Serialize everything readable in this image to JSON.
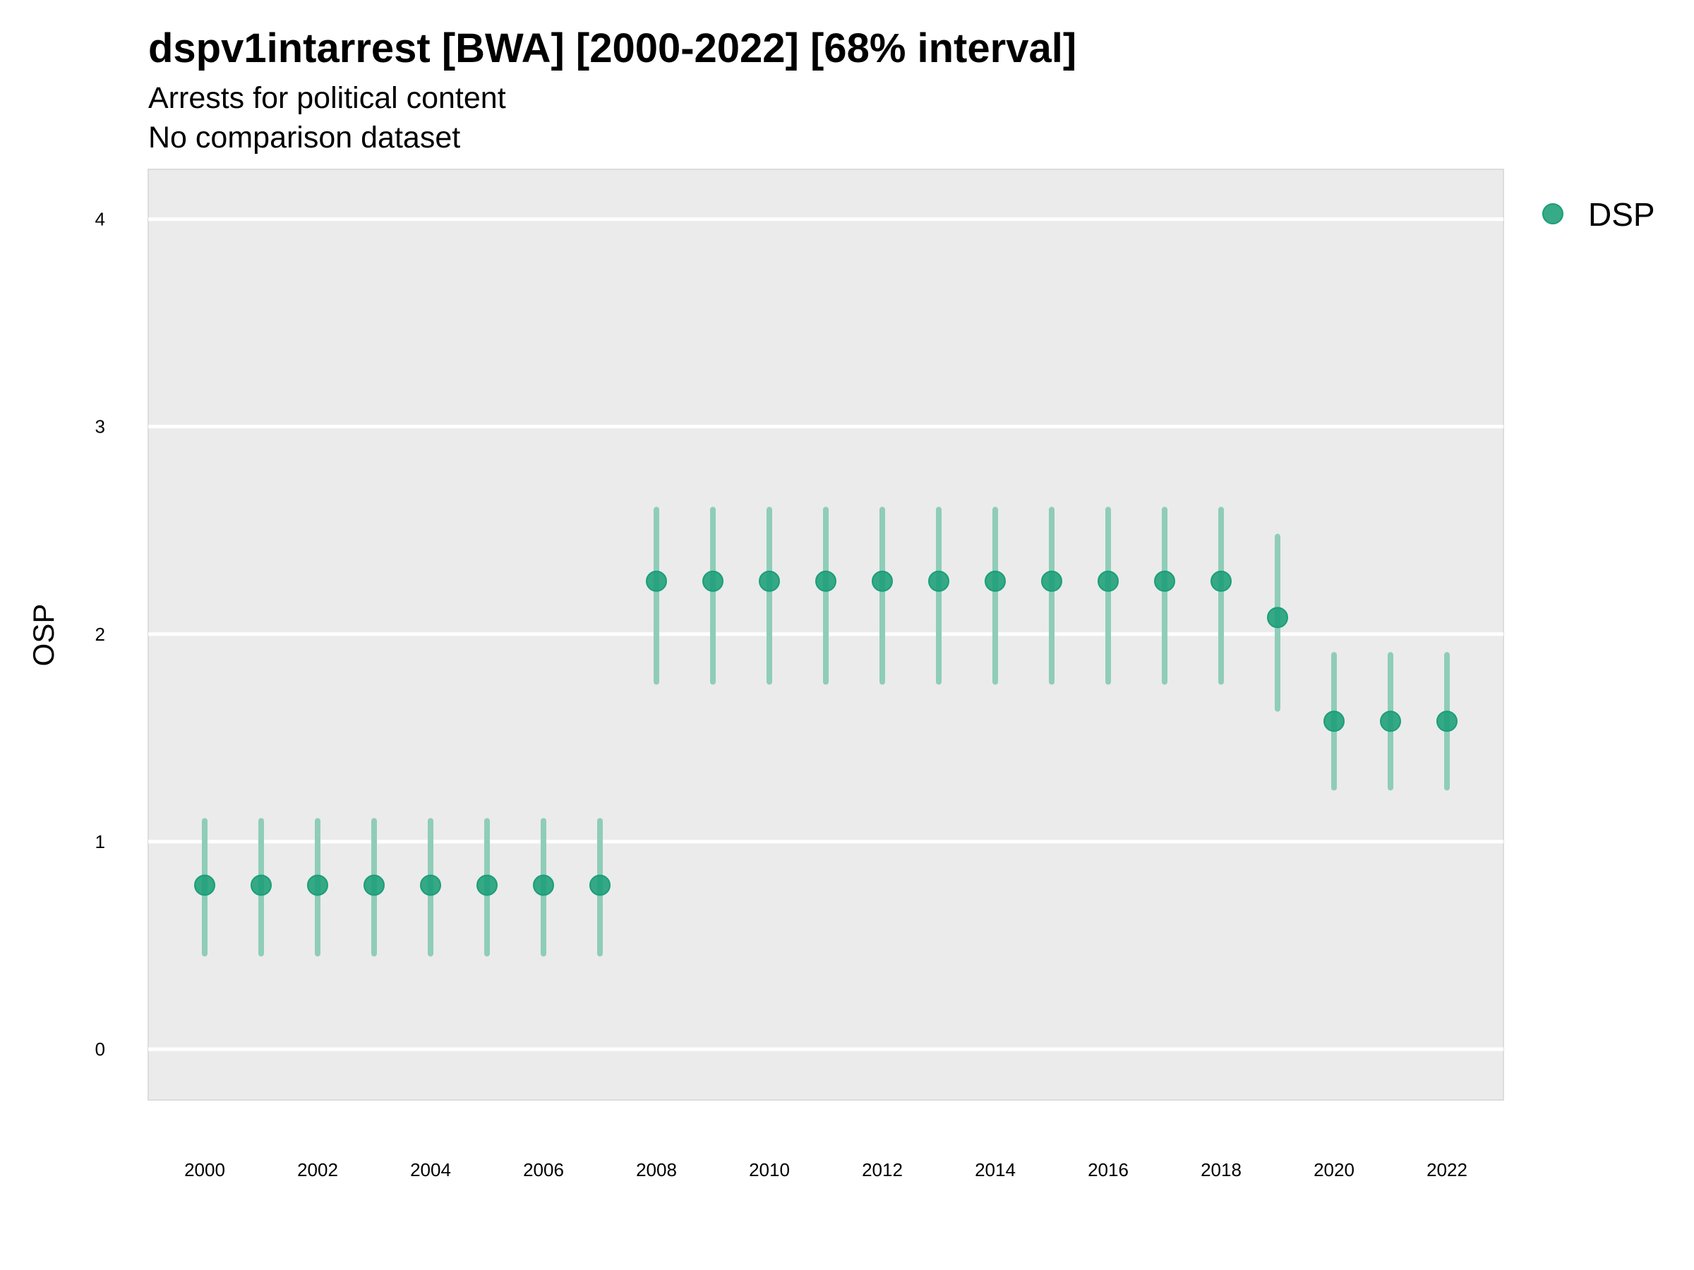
{
  "chart_data": {
    "type": "scatter",
    "title": "dspv1intarrest [BWA] [2000-2022] [68% interval]",
    "subtitle": "Arrests for political content",
    "caption": "No comparison dataset",
    "xlabel": "",
    "ylabel": "OSP",
    "xlim": [
      1999.0,
      2023.0
    ],
    "ylim": [
      -0.245,
      4.24
    ],
    "grid": true,
    "legend_position": "right",
    "x_ticks": [
      2000,
      2002,
      2004,
      2006,
      2008,
      2010,
      2012,
      2014,
      2016,
      2018,
      2020,
      2022
    ],
    "x_tick_labels": [
      "2000",
      "2002",
      "2004",
      "2006",
      "2008",
      "2010",
      "2012",
      "2014",
      "2016",
      "2018",
      "2020",
      "2022"
    ],
    "y_ticks": [
      0,
      1,
      2,
      3,
      4
    ],
    "y_tick_labels": [
      "0",
      "1",
      "2",
      "3",
      "4"
    ],
    "series": [
      {
        "name": "DSP",
        "color": "#1b9e77",
        "x": [
          2000,
          2001,
          2002,
          2003,
          2004,
          2005,
          2006,
          2007,
          2008,
          2009,
          2010,
          2011,
          2012,
          2013,
          2014,
          2015,
          2016,
          2017,
          2018,
          2019,
          2020,
          2021,
          2022
        ],
        "values": [
          0.79,
          0.79,
          0.79,
          0.79,
          0.79,
          0.79,
          0.79,
          0.79,
          2.255,
          2.255,
          2.255,
          2.255,
          2.255,
          2.255,
          2.255,
          2.255,
          2.255,
          2.255,
          2.255,
          2.08,
          1.58,
          1.58,
          1.58
        ],
        "lower": [
          0.46,
          0.46,
          0.46,
          0.46,
          0.46,
          0.46,
          0.46,
          0.46,
          1.77,
          1.77,
          1.77,
          1.77,
          1.77,
          1.77,
          1.77,
          1.77,
          1.77,
          1.77,
          1.77,
          1.64,
          1.26,
          1.26,
          1.26
        ],
        "upper": [
          1.1,
          1.1,
          1.1,
          1.1,
          1.1,
          1.1,
          1.1,
          1.1,
          2.6,
          2.6,
          2.6,
          2.6,
          2.6,
          2.6,
          2.6,
          2.6,
          2.6,
          2.6,
          2.6,
          2.47,
          1.9,
          1.9,
          1.9
        ]
      }
    ],
    "colors": {
      "panel_background": "#ebebeb",
      "gridline": "#ffffff",
      "point": "#1b9e77",
      "interval": "#8fcdb8"
    }
  }
}
